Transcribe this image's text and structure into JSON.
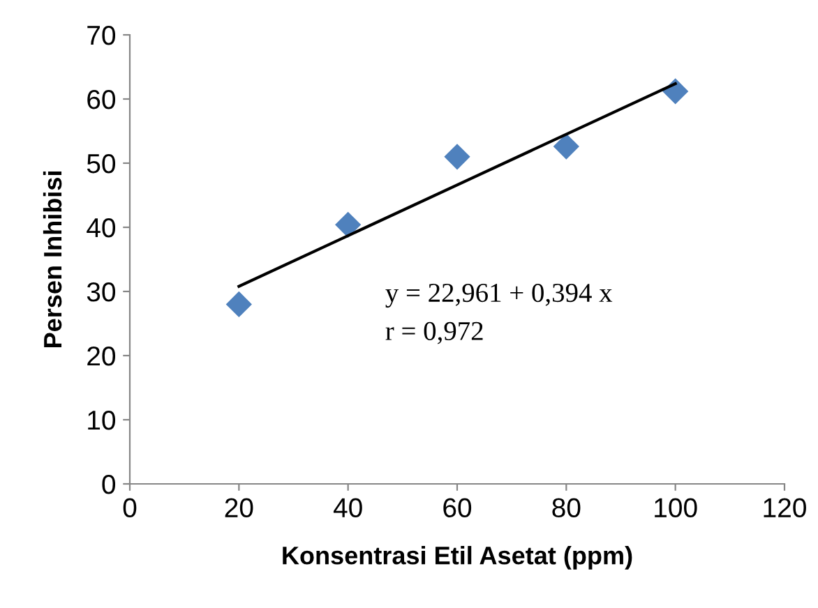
{
  "chart_data": {
    "type": "scatter",
    "xlabel": "Konsentrasi Etil Asetat (ppm)",
    "ylabel": "Persen Inhibisi",
    "series": [
      {
        "color": "#4f81bd",
        "marker": "diamond",
        "x": [
          20,
          40,
          60,
          80,
          100
        ],
        "values": [
          28,
          40.4,
          51,
          52.6,
          61.2
        ]
      },
      {
        "type": "line",
        "color": "#000000",
        "marker": "none",
        "line_style": "solid",
        "x": [
          20,
          100
        ],
        "values": [
          30.8,
          62.4
        ]
      }
    ],
    "annotations": [
      "y = 22,961 + 0,394 x",
      "r = 0,972"
    ],
    "xlim": [
      0,
      120
    ],
    "xticks": [
      0,
      20,
      40,
      60,
      80,
      100,
      120
    ],
    "ylim": [
      0,
      70
    ],
    "yticks": [
      0,
      10,
      20,
      30,
      40,
      50,
      60,
      70
    ],
    "grid": false,
    "legend": false
  }
}
